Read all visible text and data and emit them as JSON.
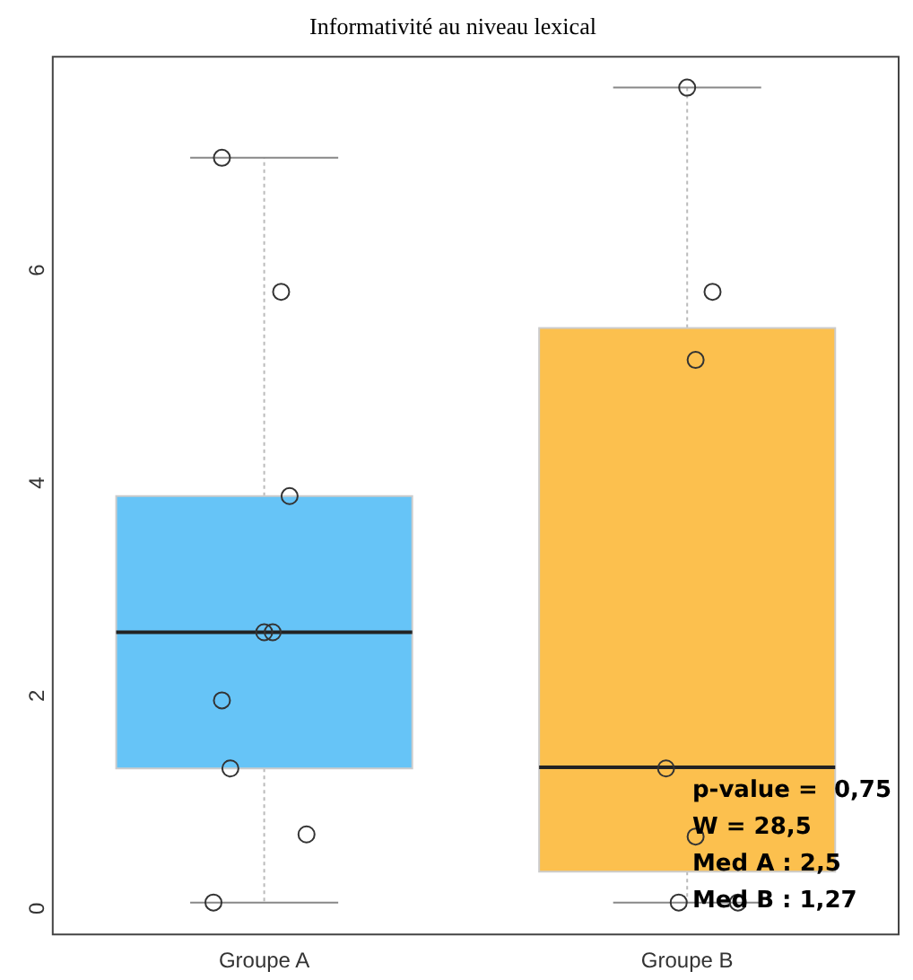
{
  "chart_data": {
    "type": "box",
    "title": "Informativité au niveau lexical",
    "categories": [
      "Groupe A",
      "Groupe B"
    ],
    "colors": [
      "#66c4f7",
      "#fcc04e"
    ],
    "boxes": [
      {
        "low": 0,
        "q1": 1.26,
        "median": 2.54,
        "q3": 3.82,
        "high": 7.0
      },
      {
        "low": 0,
        "q1": 0.29,
        "median": 1.27,
        "q3": 5.4,
        "high": 7.66
      }
    ],
    "series": [
      {
        "type": "scatter",
        "color": "#333333",
        "x": [
          "Groupe A",
          "Groupe A",
          "Groupe A",
          "Groupe A",
          "Groupe A",
          "Groupe A",
          "Groupe A",
          "Groupe A",
          "Groupe A",
          "Groupe B",
          "Groupe B",
          "Groupe B",
          "Groupe B",
          "Groupe B",
          "Groupe B",
          "Groupe B"
        ],
        "values": [
          0,
          0.64,
          1.26,
          1.9,
          2.54,
          2.54,
          3.82,
          5.74,
          7.0,
          0,
          0,
          0.62,
          1.26,
          5.1,
          5.74,
          7.66
        ]
      }
    ],
    "marker": "circle",
    "ylim": [
      -0.3,
      7.95
    ],
    "yticks": [
      0,
      2,
      4,
      6
    ],
    "grid": false,
    "legend": false,
    "annotations": [
      "p-value =  0,75",
      "W = 28,5",
      "Med A : 2,5",
      "Med B : 1,27"
    ]
  }
}
